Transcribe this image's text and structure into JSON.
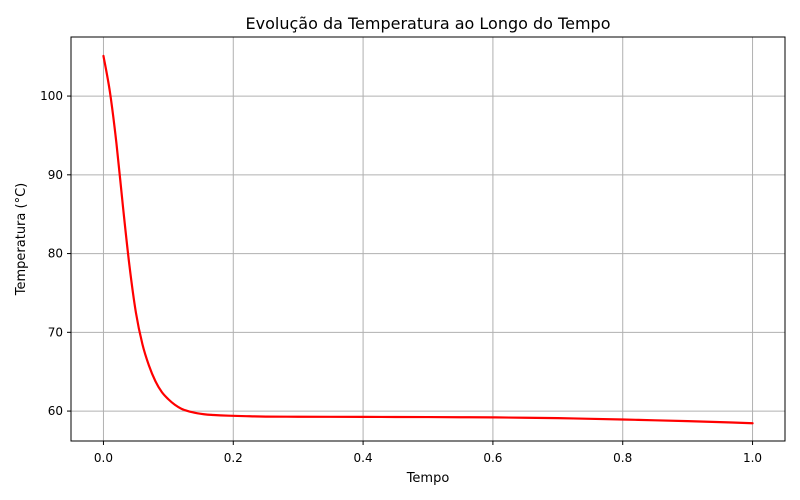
{
  "chart_data": {
    "type": "line",
    "title": "Evolução da Temperatura ao Longo do Tempo",
    "xlabel": "Tempo",
    "ylabel": "Temperatura (°C)",
    "xlim": [
      -0.05,
      1.05
    ],
    "ylim": [
      56.2,
      107.5
    ],
    "xticks": [
      0.0,
      0.2,
      0.4,
      0.6,
      0.8,
      1.0
    ],
    "xtick_labels": [
      "0.0",
      "0.2",
      "0.4",
      "0.6",
      "0.8",
      "1.0"
    ],
    "yticks": [
      60,
      70,
      80,
      90,
      100
    ],
    "ytick_labels": [
      "60",
      "70",
      "80",
      "90",
      "100"
    ],
    "grid": true,
    "colors": {
      "line": "#ff0000",
      "grid": "#b0b0b0",
      "axes": "#000000"
    },
    "series": [
      {
        "x": [
          0.0,
          0.01,
          0.02,
          0.03,
          0.04,
          0.05,
          0.06,
          0.07,
          0.08,
          0.09,
          0.1,
          0.11,
          0.12,
          0.13,
          0.14,
          0.15,
          0.16,
          0.17,
          0.18,
          0.2,
          0.22,
          0.25,
          0.3,
          0.35,
          0.4,
          0.45,
          0.5,
          0.55,
          0.6,
          0.65,
          0.7,
          0.75,
          0.8,
          0.85,
          0.9,
          0.95,
          1.0
        ],
        "y": [
          105.1,
          100.5,
          94.0,
          86.0,
          78.5,
          72.5,
          68.5,
          65.8,
          63.8,
          62.4,
          61.5,
          60.8,
          60.3,
          60.0,
          59.8,
          59.65,
          59.55,
          59.5,
          59.45,
          59.4,
          59.35,
          59.3,
          59.28,
          59.27,
          59.26,
          59.25,
          59.24,
          59.22,
          59.2,
          59.15,
          59.1,
          59.02,
          58.93,
          58.83,
          58.72,
          58.6,
          58.45
        ]
      }
    ]
  }
}
